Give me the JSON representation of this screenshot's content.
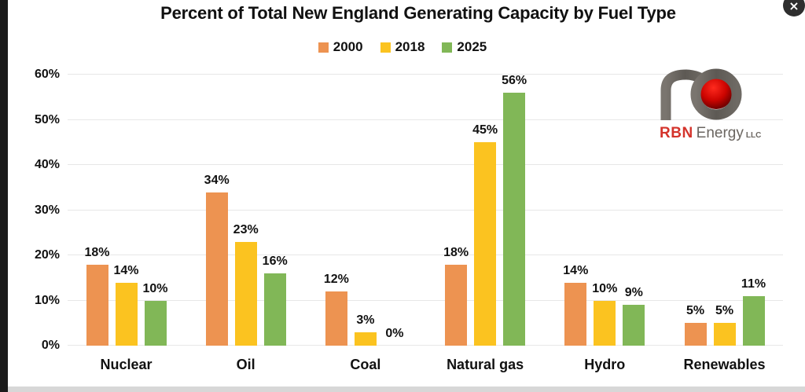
{
  "icons": {
    "close": "×"
  },
  "legend": [
    {
      "label": "2000",
      "color": "#ED9351"
    },
    {
      "label": "2018",
      "color": "#FBC320"
    },
    {
      "label": "2025",
      "color": "#81B757"
    }
  ],
  "logo": {
    "brand": "RBN",
    "name": "Energy",
    "suffix": "LLC"
  },
  "chart_data": {
    "type": "bar",
    "title": "Percent of Total New England Generating Capacity by Fuel Type",
    "categories": [
      "Nuclear",
      "Oil",
      "Coal",
      "Natural gas",
      "Hydro",
      "Renewables"
    ],
    "series": [
      {
        "name": "2000",
        "color": "#ED9351",
        "values": [
          18,
          34,
          12,
          18,
          14,
          5
        ]
      },
      {
        "name": "2018",
        "color": "#FBC320",
        "values": [
          14,
          23,
          3,
          45,
          10,
          5
        ]
      },
      {
        "name": "2025",
        "color": "#81B757",
        "values": [
          10,
          16,
          0,
          56,
          9,
          11
        ]
      }
    ],
    "data_labels": [
      "18%",
      "34%",
      "12%",
      "18%",
      "14%",
      "5%",
      "14%",
      "23%",
      "3%",
      "45%",
      "10%",
      "5%",
      "10%",
      "16%",
      "0%",
      "56%",
      "9%",
      "11%"
    ],
    "xlabel": "",
    "ylabel": "",
    "ylim": [
      0,
      60
    ],
    "yticks": [
      "0%",
      "10%",
      "20%",
      "30%",
      "40%",
      "50%",
      "60%"
    ],
    "grid": true,
    "legend_position": "top"
  }
}
